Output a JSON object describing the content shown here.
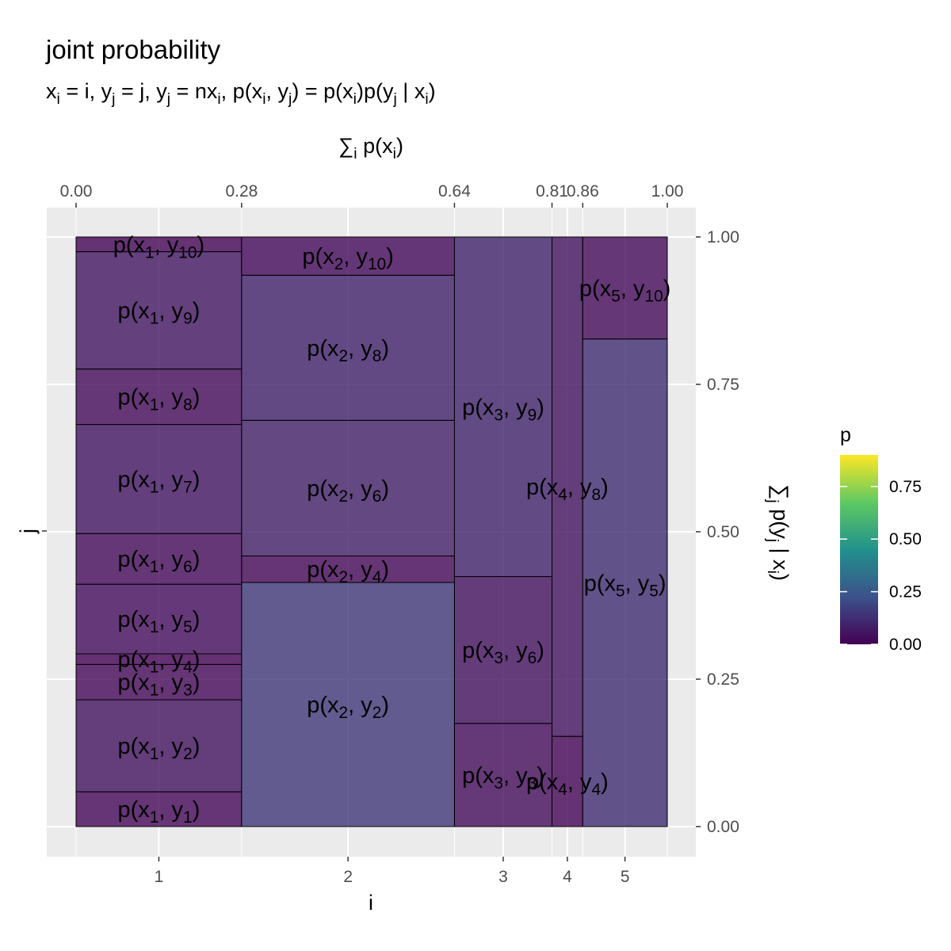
{
  "chart_data": {
    "type": "mosaic",
    "title": "joint probability",
    "subtitle": "xᵢ = i, yⱼ = j, yⱼ = nxᵢ, p(xᵢ, yⱼ) = p(xᵢ)p(yⱼ | xᵢ)",
    "xlabel": "i",
    "ylabel": "j",
    "x2label": "∑ᵢ p(xᵢ)",
    "y2label": "∑ⱼ p(yⱼ | xᵢ)",
    "x_categories": [
      "1",
      "2",
      "3",
      "4",
      "5"
    ],
    "x_top_ticks": [
      "0.00",
      "0.28",
      "0.64",
      "0.81",
      "0.86",
      "1.00"
    ],
    "y_right_ticks": [
      "0.00",
      "0.25",
      "0.50",
      "0.75",
      "1.00"
    ],
    "y_right_tick_values": [
      0,
      0.25,
      0.5,
      0.75,
      1.0
    ],
    "columns": [
      {
        "i": 1,
        "start": 0.0,
        "end": 0.28,
        "cells": [
          {
            "j": 1,
            "start": 0.0,
            "end": 0.059
          },
          {
            "j": 2,
            "start": 0.059,
            "end": 0.215
          },
          {
            "j": 3,
            "start": 0.215,
            "end": 0.275
          },
          {
            "j": 4,
            "start": 0.275,
            "end": 0.293
          },
          {
            "j": 5,
            "start": 0.293,
            "end": 0.411
          },
          {
            "j": 6,
            "start": 0.411,
            "end": 0.497
          },
          {
            "j": 7,
            "start": 0.497,
            "end": 0.682
          },
          {
            "j": 8,
            "start": 0.682,
            "end": 0.776
          },
          {
            "j": 9,
            "start": 0.776,
            "end": 0.975
          },
          {
            "j": 10,
            "start": 0.975,
            "end": 1.0
          }
        ]
      },
      {
        "i": 2,
        "start": 0.28,
        "end": 0.64,
        "cells": [
          {
            "j": 2,
            "start": 0.0,
            "end": 0.414
          },
          {
            "j": 4,
            "start": 0.414,
            "end": 0.459
          },
          {
            "j": 6,
            "start": 0.459,
            "end": 0.689
          },
          {
            "j": 8,
            "start": 0.689,
            "end": 0.935
          },
          {
            "j": 10,
            "start": 0.935,
            "end": 1.0
          }
        ]
      },
      {
        "i": 3,
        "start": 0.64,
        "end": 0.805,
        "cells": [
          {
            "j": 3,
            "start": 0.0,
            "end": 0.175
          },
          {
            "j": 6,
            "start": 0.175,
            "end": 0.424
          },
          {
            "j": 9,
            "start": 0.424,
            "end": 1.0
          }
        ]
      },
      {
        "i": 4,
        "start": 0.805,
        "end": 0.857,
        "cells": [
          {
            "j": 4,
            "start": 0.0,
            "end": 0.153
          },
          {
            "j": 8,
            "start": 0.153,
            "end": 1.0
          }
        ]
      },
      {
        "i": 5,
        "start": 0.857,
        "end": 1.0,
        "cells": [
          {
            "j": 5,
            "start": 0.0,
            "end": 0.827
          },
          {
            "j": 10,
            "start": 0.827,
            "end": 1.0
          }
        ]
      }
    ],
    "colorbar": {
      "title": "p",
      "ticks": [
        "0.00",
        "0.25",
        "0.50",
        "0.75"
      ],
      "tick_values": [
        0,
        0.25,
        0.5,
        0.75
      ],
      "range": [
        0,
        0.9
      ],
      "colors": [
        "#440154",
        "#3b528b",
        "#21918c",
        "#5ec962",
        "#fde725"
      ]
    },
    "panel_background": "#ebebeb",
    "grid": true
  }
}
